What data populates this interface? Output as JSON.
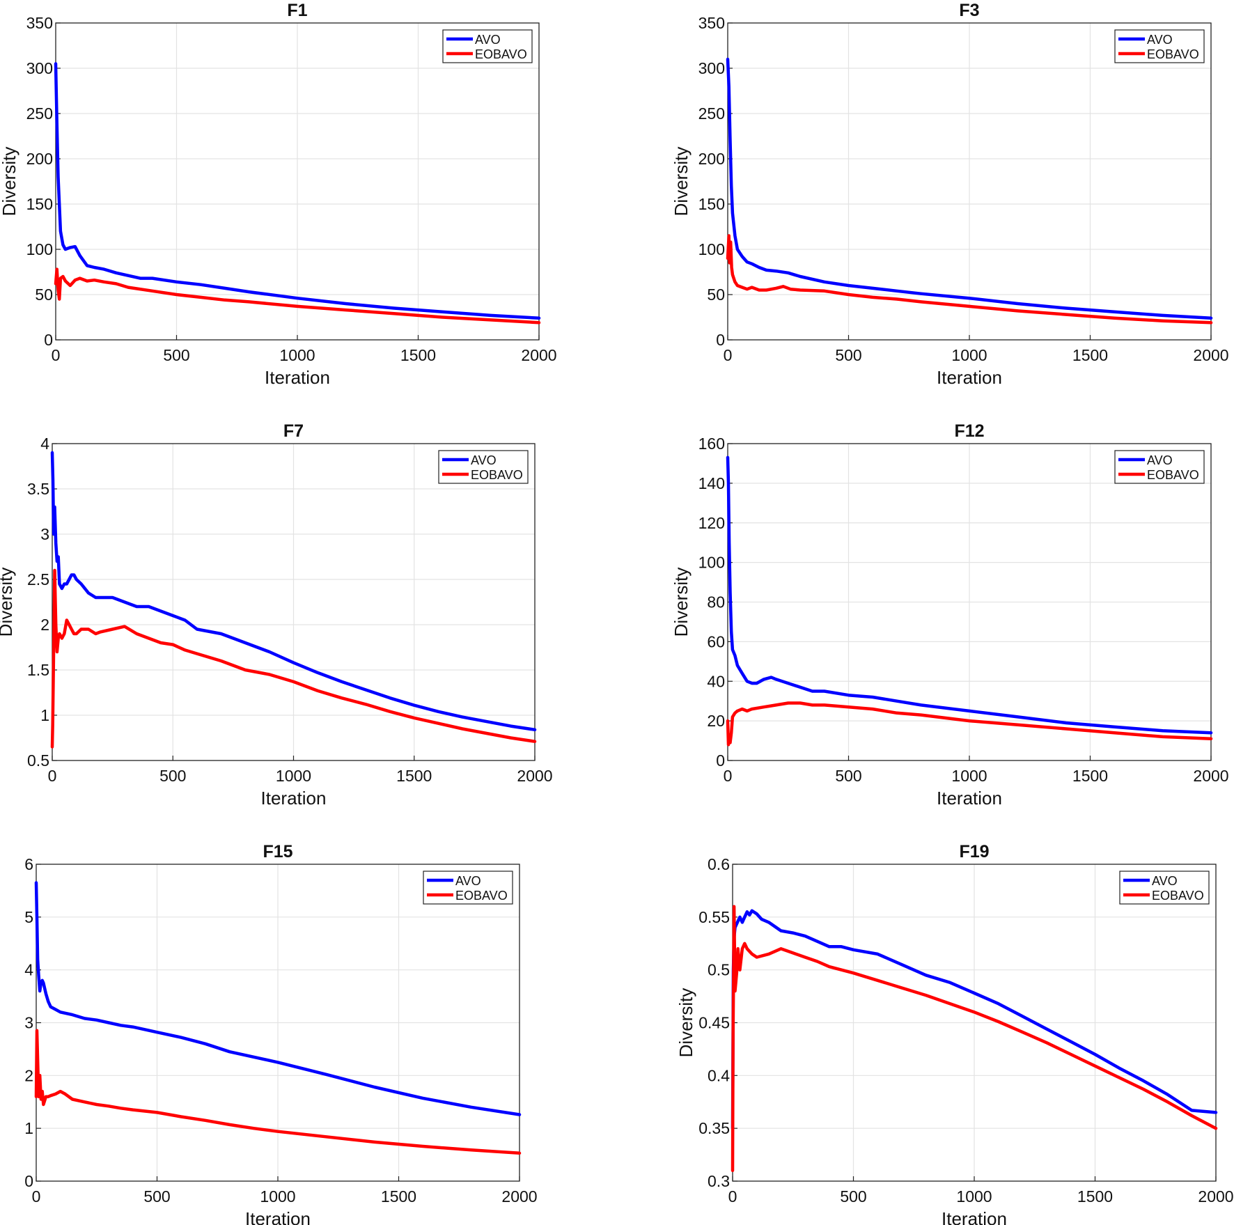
{
  "colors": {
    "avo": "#0000ff",
    "eobavo": "#ff0000",
    "grid": "#e3e3e3",
    "axis": "#222222"
  },
  "chart_data": [
    {
      "type": "line",
      "title": "F1",
      "xlabel": "Iteration",
      "ylabel": "Diversity",
      "xlim": [
        0,
        2000
      ],
      "ylim": [
        0,
        350
      ],
      "xticks": [
        0,
        500,
        1000,
        1500,
        2000
      ],
      "yticks": [
        0,
        50,
        100,
        150,
        200,
        250,
        300,
        350
      ],
      "legend": "top-right",
      "series": [
        {
          "name": "AVO",
          "color": "#0000ff",
          "x": [
            0,
            5,
            10,
            20,
            30,
            40,
            60,
            80,
            100,
            130,
            160,
            200,
            250,
            300,
            350,
            400,
            500,
            600,
            700,
            800,
            1000,
            1200,
            1400,
            1600,
            1800,
            2000
          ],
          "y": [
            305,
            240,
            180,
            120,
            105,
            100,
            102,
            103,
            93,
            82,
            80,
            78,
            74,
            71,
            68,
            68,
            64,
            61,
            57,
            53,
            46,
            40,
            35,
            31,
            27,
            24
          ]
        },
        {
          "name": "EOBAVO",
          "color": "#ff0000",
          "x": [
            0,
            5,
            10,
            15,
            20,
            30,
            40,
            60,
            80,
            100,
            130,
            160,
            200,
            250,
            300,
            400,
            500,
            600,
            700,
            800,
            1000,
            1200,
            1400,
            1600,
            1800,
            2000
          ],
          "y": [
            62,
            78,
            55,
            45,
            68,
            70,
            65,
            60,
            66,
            68,
            65,
            66,
            64,
            62,
            58,
            54,
            50,
            47,
            44,
            42,
            37,
            33,
            29,
            25,
            22,
            19
          ]
        }
      ]
    },
    {
      "type": "line",
      "title": "F3",
      "xlabel": "Iteration",
      "ylabel": "Diversity",
      "xlim": [
        0,
        2000
      ],
      "ylim": [
        0,
        350
      ],
      "xticks": [
        0,
        500,
        1000,
        1500,
        2000
      ],
      "yticks": [
        0,
        50,
        100,
        150,
        200,
        250,
        300,
        350
      ],
      "legend": "top-right",
      "series": [
        {
          "name": "AVO",
          "color": "#0000ff",
          "x": [
            0,
            5,
            10,
            15,
            20,
            30,
            40,
            60,
            80,
            100,
            130,
            160,
            200,
            250,
            300,
            400,
            500,
            600,
            700,
            800,
            1000,
            1200,
            1400,
            1600,
            1800,
            2000
          ],
          "y": [
            310,
            280,
            220,
            170,
            140,
            115,
            100,
            92,
            86,
            84,
            80,
            77,
            76,
            74,
            70,
            64,
            60,
            57,
            54,
            51,
            46,
            40,
            35,
            31,
            27,
            24
          ]
        },
        {
          "name": "EOBAVO",
          "color": "#ff0000",
          "x": [
            0,
            5,
            8,
            12,
            16,
            20,
            30,
            40,
            60,
            80,
            100,
            130,
            160,
            200,
            230,
            260,
            300,
            400,
            500,
            600,
            700,
            800,
            1000,
            1200,
            1400,
            1600,
            1800,
            2000
          ],
          "y": [
            90,
            115,
            85,
            108,
            80,
            72,
            64,
            60,
            58,
            56,
            58,
            55,
            55,
            57,
            59,
            56,
            55,
            54,
            50,
            47,
            45,
            42,
            37,
            32,
            28,
            24,
            21,
            19
          ]
        }
      ]
    },
    {
      "type": "line",
      "title": "F7",
      "xlabel": "Iteration",
      "ylabel": "Diversity",
      "xlim": [
        0,
        2000
      ],
      "ylim": [
        0.5,
        4
      ],
      "xticks": [
        0,
        500,
        1000,
        1500,
        2000
      ],
      "yticks": [
        0.5,
        1,
        1.5,
        2,
        2.5,
        3,
        3.5,
        4
      ],
      "legend": "top-right",
      "series": [
        {
          "name": "AVO",
          "color": "#0000ff",
          "x": [
            0,
            3,
            6,
            10,
            15,
            20,
            25,
            30,
            40,
            50,
            60,
            70,
            80,
            90,
            100,
            120,
            150,
            180,
            200,
            250,
            300,
            350,
            400,
            450,
            500,
            550,
            600,
            700,
            800,
            900,
            1000,
            1100,
            1200,
            1300,
            1400,
            1500,
            1600,
            1700,
            1800,
            1900,
            2000
          ],
          "y": [
            3.9,
            3.6,
            3.0,
            3.3,
            2.9,
            2.7,
            2.75,
            2.45,
            2.4,
            2.45,
            2.45,
            2.5,
            2.55,
            2.55,
            2.5,
            2.45,
            2.35,
            2.3,
            2.3,
            2.3,
            2.25,
            2.2,
            2.2,
            2.15,
            2.1,
            2.05,
            1.95,
            1.9,
            1.8,
            1.7,
            1.58,
            1.47,
            1.37,
            1.28,
            1.19,
            1.11,
            1.04,
            0.98,
            0.93,
            0.88,
            0.84
          ]
        },
        {
          "name": "EOBAVO",
          "color": "#ff0000",
          "x": [
            0,
            2,
            5,
            8,
            10,
            15,
            20,
            25,
            30,
            40,
            50,
            60,
            70,
            80,
            90,
            100,
            120,
            150,
            180,
            200,
            250,
            300,
            350,
            400,
            450,
            500,
            550,
            600,
            700,
            800,
            900,
            1000,
            1100,
            1200,
            1300,
            1400,
            1500,
            1600,
            1700,
            1800,
            1900,
            2000
          ],
          "y": [
            0.65,
            0.9,
            1.5,
            2.2,
            2.6,
            2.0,
            1.7,
            1.85,
            1.9,
            1.85,
            1.9,
            2.05,
            2.0,
            1.95,
            1.9,
            1.9,
            1.95,
            1.95,
            1.9,
            1.92,
            1.95,
            1.98,
            1.9,
            1.85,
            1.8,
            1.78,
            1.72,
            1.68,
            1.6,
            1.5,
            1.45,
            1.37,
            1.27,
            1.19,
            1.12,
            1.04,
            0.97,
            0.91,
            0.85,
            0.8,
            0.75,
            0.71
          ]
        }
      ]
    },
    {
      "type": "line",
      "title": "F12",
      "xlabel": "Iteration",
      "ylabel": "Diversity",
      "xlim": [
        0,
        2000
      ],
      "ylim": [
        0,
        160
      ],
      "xticks": [
        0,
        500,
        1000,
        1500,
        2000
      ],
      "yticks": [
        0,
        20,
        40,
        60,
        80,
        100,
        120,
        140,
        160
      ],
      "legend": "top-right",
      "series": [
        {
          "name": "AVO",
          "color": "#0000ff",
          "x": [
            0,
            3,
            6,
            10,
            15,
            20,
            30,
            40,
            60,
            80,
            100,
            120,
            150,
            180,
            200,
            250,
            300,
            350,
            400,
            500,
            600,
            700,
            800,
            1000,
            1200,
            1400,
            1600,
            1800,
            2000
          ],
          "y": [
            153,
            140,
            110,
            85,
            65,
            56,
            53,
            48,
            44,
            40,
            39,
            39,
            41,
            42,
            41,
            39,
            37,
            35,
            35,
            33,
            32,
            30,
            28,
            25,
            22,
            19,
            17,
            15,
            14
          ]
        },
        {
          "name": "EOBAVO",
          "color": "#ff0000",
          "x": [
            0,
            3,
            6,
            10,
            15,
            20,
            30,
            40,
            60,
            80,
            100,
            150,
            200,
            250,
            300,
            350,
            400,
            500,
            600,
            700,
            800,
            1000,
            1200,
            1400,
            1600,
            1800,
            2000
          ],
          "y": [
            20,
            8,
            12,
            9,
            14,
            22,
            24,
            25,
            26,
            25,
            26,
            27,
            28,
            29,
            29,
            28,
            28,
            27,
            26,
            24,
            23,
            20,
            18,
            16,
            14,
            12,
            11
          ]
        }
      ]
    },
    {
      "type": "line",
      "title": "F15",
      "xlabel": "Iteration",
      "ylabel": "Diversity",
      "xlim": [
        0,
        2000
      ],
      "ylim": [
        0,
        6
      ],
      "xticks": [
        0,
        500,
        1000,
        1500,
        2000
      ],
      "yticks": [
        0,
        1,
        2,
        3,
        4,
        5,
        6
      ],
      "legend": "top-right",
      "series": [
        {
          "name": "AVO",
          "color": "#0000ff",
          "x": [
            0,
            3,
            6,
            10,
            15,
            20,
            25,
            30,
            40,
            50,
            60,
            80,
            100,
            150,
            200,
            250,
            300,
            350,
            400,
            500,
            600,
            700,
            800,
            1000,
            1200,
            1400,
            1600,
            1800,
            2000
          ],
          "y": [
            5.65,
            5.0,
            4.2,
            3.9,
            3.6,
            3.75,
            3.8,
            3.75,
            3.55,
            3.4,
            3.3,
            3.25,
            3.2,
            3.15,
            3.08,
            3.05,
            3.0,
            2.95,
            2.92,
            2.82,
            2.72,
            2.6,
            2.45,
            2.25,
            2.02,
            1.78,
            1.57,
            1.4,
            1.26
          ]
        },
        {
          "name": "EOBAVO",
          "color": "#ff0000",
          "x": [
            0,
            3,
            6,
            10,
            15,
            20,
            25,
            30,
            40,
            50,
            60,
            80,
            100,
            120,
            150,
            200,
            250,
            300,
            350,
            400,
            500,
            600,
            700,
            800,
            900,
            1000,
            1200,
            1400,
            1600,
            1800,
            2000
          ],
          "y": [
            1.6,
            2.85,
            2.3,
            1.6,
            2.0,
            1.55,
            1.7,
            1.45,
            1.6,
            1.6,
            1.62,
            1.65,
            1.7,
            1.65,
            1.55,
            1.5,
            1.45,
            1.42,
            1.38,
            1.35,
            1.3,
            1.22,
            1.15,
            1.07,
            1.0,
            0.94,
            0.84,
            0.74,
            0.66,
            0.59,
            0.53
          ]
        }
      ]
    },
    {
      "type": "line",
      "title": "F19",
      "xlabel": "Iteration",
      "ylabel": "Diversity",
      "xlim": [
        0,
        2000
      ],
      "ylim": [
        0.3,
        0.6
      ],
      "xticks": [
        0,
        500,
        1000,
        1500,
        2000
      ],
      "yticks": [
        0.3,
        0.35,
        0.4,
        0.45,
        0.5,
        0.55,
        0.6
      ],
      "legend": "top-right",
      "series": [
        {
          "name": "AVO",
          "color": "#0000ff",
          "x": [
            0,
            3,
            6,
            10,
            20,
            30,
            40,
            50,
            60,
            70,
            80,
            100,
            120,
            150,
            200,
            250,
            300,
            350,
            400,
            450,
            500,
            600,
            700,
            800,
            900,
            1000,
            1100,
            1200,
            1300,
            1400,
            1500,
            1600,
            1700,
            1800,
            1900,
            2000
          ],
          "y": [
            0.35,
            0.5,
            0.53,
            0.54,
            0.545,
            0.55,
            0.545,
            0.55,
            0.555,
            0.552,
            0.556,
            0.553,
            0.548,
            0.545,
            0.537,
            0.535,
            0.532,
            0.527,
            0.522,
            0.522,
            0.519,
            0.515,
            0.505,
            0.495,
            0.488,
            0.478,
            0.468,
            0.456,
            0.444,
            0.432,
            0.42,
            0.407,
            0.395,
            0.382,
            0.367,
            0.365
          ]
        },
        {
          "name": "EOBAVO",
          "color": "#ff0000",
          "x": [
            0,
            2,
            4,
            6,
            8,
            10,
            14,
            18,
            22,
            26,
            30,
            40,
            50,
            60,
            80,
            100,
            150,
            200,
            250,
            300,
            350,
            400,
            500,
            600,
            700,
            800,
            900,
            1000,
            1100,
            1200,
            1300,
            1400,
            1500,
            1600,
            1700,
            1800,
            1900,
            2000
          ],
          "y": [
            0.31,
            0.44,
            0.5,
            0.56,
            0.52,
            0.48,
            0.49,
            0.5,
            0.52,
            0.51,
            0.5,
            0.52,
            0.525,
            0.52,
            0.515,
            0.512,
            0.515,
            0.52,
            0.516,
            0.512,
            0.508,
            0.503,
            0.497,
            0.49,
            0.483,
            0.476,
            0.468,
            0.46,
            0.451,
            0.441,
            0.431,
            0.42,
            0.409,
            0.398,
            0.387,
            0.375,
            0.362,
            0.35
          ]
        }
      ]
    }
  ]
}
